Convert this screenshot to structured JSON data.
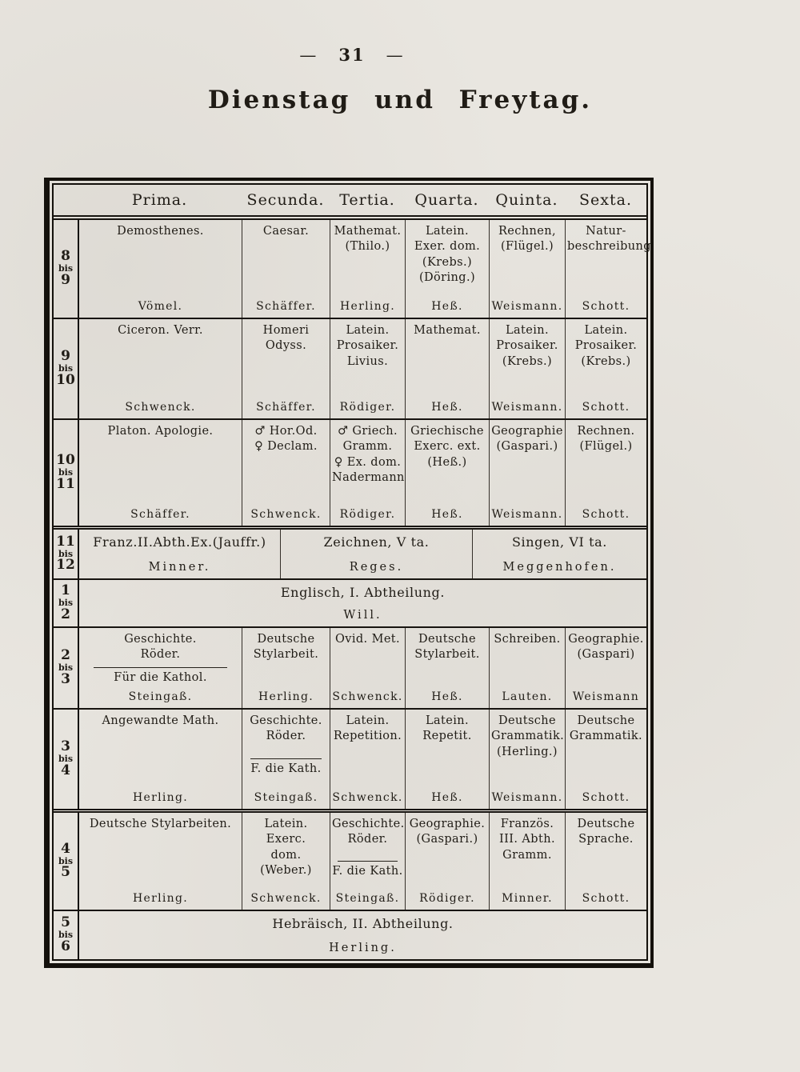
{
  "page": {
    "dash": "—",
    "number": "31",
    "title": "Dienstag und Freytag."
  },
  "colors": {
    "paper": "#e9e6e0",
    "ink": "#201c16"
  },
  "table": {
    "columns": [
      "Prima.",
      "Secunda.",
      "Tertia.",
      "Quarta.",
      "Quinta.",
      "Sexta."
    ],
    "rows": [
      {
        "time": {
          "from": "8",
          "sep": "bis",
          "to": "9"
        },
        "cells": [
          {
            "subject": "Demosthenes.",
            "teacher": "Vömel."
          },
          {
            "subject": "Caesar.",
            "teacher": "Schäffer."
          },
          {
            "subject": "Mathemat.\n(Thilo.)",
            "teacher": "Herling."
          },
          {
            "subject": "Latein.\nExer. dom.\n(Krebs.)\n(Döring.)",
            "teacher": "Heß."
          },
          {
            "subject": "Rechnen,\n(Flügel.)",
            "teacher": "Weismann."
          },
          {
            "subject": "Natur-\nbeschreibung",
            "teacher": "Schott."
          }
        ]
      },
      {
        "time": {
          "from": "9",
          "sep": "bis",
          "to": "10"
        },
        "cells": [
          {
            "subject": "Ciceron. Verr.",
            "teacher": "Schwenck."
          },
          {
            "subject": "Homeri\nOdyss.",
            "teacher": "Schäffer."
          },
          {
            "subject": "Latein.\nProsaiker.\nLivius.",
            "teacher": "Rödiger."
          },
          {
            "subject": "Mathemat.",
            "teacher": "Heß."
          },
          {
            "subject": "Latein.\nProsaiker.\n(Krebs.)",
            "teacher": "Weismann."
          },
          {
            "subject": "Latein.\nProsaiker.\n(Krebs.)",
            "teacher": "Schott."
          }
        ]
      },
      {
        "time": {
          "from": "10",
          "sep": "bis",
          "to": "11"
        },
        "cells": [
          {
            "subject": "Platon. Apologie.",
            "teacher": "Schäffer."
          },
          {
            "subject": "♂ Hor.Od.\n♀ Declam.",
            "teacher": "Schwenck."
          },
          {
            "subject": "♂ Griech.\nGramm.\n♀ Ex. dom.\nNadermann",
            "teacher": "Rödiger."
          },
          {
            "subject": "Griechische\nExerc. ext.\n(Heß.)",
            "teacher": "Heß."
          },
          {
            "subject": "Geographie\n(Gaspari.)",
            "teacher": "Weismann."
          },
          {
            "subject": "Rechnen.\n(Flügel.)",
            "teacher": "Schott."
          }
        ]
      },
      {
        "time": {
          "from": "11",
          "sep": "bis",
          "to": "12"
        },
        "cells": [
          {
            "subject": "Franz.II.Abth.Ex.(Jauffr.)",
            "teacher": "Minner."
          },
          {
            "subject": "Zeichnen, V ta.",
            "teacher": "Reges."
          },
          {
            "subject": "Singen, VI ta.",
            "teacher": "Meggenhofen."
          }
        ]
      },
      {
        "time": {
          "from": "1",
          "sep": "bis",
          "to": "2"
        },
        "cells": [
          {
            "subject": "Englisch, I. Abtheilung.",
            "teacher": "Will."
          }
        ]
      },
      {
        "time": {
          "from": "2",
          "sep": "bis",
          "to": "3"
        },
        "cells": [
          {
            "subject": "Geschichte.\nRöder.",
            "note": "Für die Kathol.",
            "teacher": "Steingaß."
          },
          {
            "subject": "Deutsche\nStylarbeit.",
            "teacher": "Herling."
          },
          {
            "subject": "Ovid. Met.",
            "teacher": "Schwenck."
          },
          {
            "subject": "Deutsche\nStylarbeit.",
            "teacher": "Heß."
          },
          {
            "subject": "Schreiben.",
            "teacher": "Lauten."
          },
          {
            "subject": "Geographie.\n(Gaspari)",
            "teacher": "Weismann"
          }
        ]
      },
      {
        "time": {
          "from": "3",
          "sep": "bis",
          "to": "4"
        },
        "cells": [
          {
            "subject": "Angewandte Math.",
            "teacher": "Herling."
          },
          {
            "subject": "Geschichte.\nRöder.",
            "note": "F. die Kath.",
            "teacher": "Steingaß."
          },
          {
            "subject": "Latein.\nRepetition.",
            "teacher": "Schwenck."
          },
          {
            "subject": "Latein.\nRepetit.",
            "teacher": "Heß."
          },
          {
            "subject": "Deutsche\nGrammatik.\n(Herling.)",
            "teacher": "Weismann."
          },
          {
            "subject": "Deutsche\nGrammatik.",
            "teacher": "Schott."
          }
        ]
      },
      {
        "time": {
          "from": "4",
          "sep": "bis",
          "to": "5"
        },
        "cells": [
          {
            "subject": "Deutsche Stylarbeiten.",
            "teacher": "Herling."
          },
          {
            "subject": "Latein.\nExerc.\ndom.\n(Weber.)",
            "teacher": "Schwenck."
          },
          {
            "subject": "Geschichte.\nRöder.",
            "note": "F. die Kath.",
            "teacher": "Steingaß."
          },
          {
            "subject": "Geographie.\n(Gaspari.)",
            "teacher": "Rödiger."
          },
          {
            "subject": "Französ.\nIII. Abth.\nGramm.",
            "teacher": "Minner."
          },
          {
            "subject": "Deutsche\nSprache.",
            "teacher": "Schott."
          }
        ]
      },
      {
        "time": {
          "from": "5",
          "sep": "bis",
          "to": "6"
        },
        "cells": [
          {
            "subject": "Hebräisch, II. Abtheilung.",
            "teacher": "Herling."
          }
        ]
      }
    ]
  }
}
